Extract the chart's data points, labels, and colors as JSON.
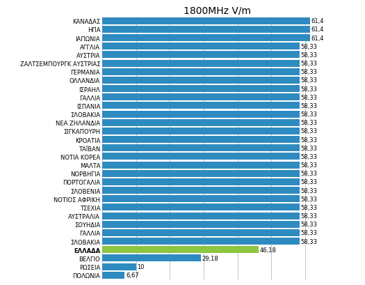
{
  "title": "1800MHz V/m",
  "categories": [
    "ΠΟΛΩΝΙΑ",
    "ΡΩΣΕΙΑ",
    "ΒΕΛΓΙΟ",
    "ΕΛΛΑΔΑ",
    "ΣΛΟΒΑΚΙΑ",
    "ΓΑΛΛΙΑ",
    "ΣΟΥΗΔΙΑ",
    "ΑΥΣΤΡΑΛΙΑ",
    "ΤΣΕΧΙΑ",
    "ΝΟΤΙΟΣ ΑΦΡΙΚΗ",
    "ΣΛΟΒΕΝΙΑ",
    "ΠΟΡΤΟΓΑΛΙΑ",
    "ΝΟΡΒΗΓΙΑ",
    "ΜΑΛΤΑ",
    "ΝΟΤΙΑ ΚΟΡΕΑ",
    "ΤΑΪΒΑΝ",
    "ΚΡΟΑΤΙΑ",
    "ΣΙΓΚΑΠΟΥΡΗ",
    "ΝΕΑ ΖΗΛΑΝΔΙΑ",
    "ΣΛΟΒΑΚΙΑ",
    "ΙΣΠΑΝΙΑ",
    "ΓΑΛΛΙΑ",
    "ΙΣΡΑΗΛ",
    "ΟΛΛΑΝΔΙΑ",
    "ΓΕΡΜΑΝΙΑ",
    "ΖΑΛΤΣΕΜΠΟΥΡΓΚ ΑΥΣΤΡΙΑΣ",
    "ΑΥΣΤΡΙΑ",
    "ΑΓΓΛΙΑ",
    "ΙΑΠΩΝΙΑ",
    "ΗΠΑ",
    "ΚΑΝΑΔΑΣ"
  ],
  "values": [
    6.67,
    10,
    29.18,
    46.18,
    58.33,
    58.33,
    58.33,
    58.33,
    58.33,
    58.33,
    58.33,
    58.33,
    58.33,
    58.33,
    58.33,
    58.33,
    58.33,
    58.33,
    58.33,
    58.33,
    58.33,
    58.33,
    58.33,
    58.33,
    58.33,
    58.33,
    58.33,
    58.33,
    61.4,
    61.4,
    61.4
  ],
  "bar_colors": [
    "#2e8bc0",
    "#2e8bc0",
    "#2e8bc0",
    "#8dc63f",
    "#2e8bc0",
    "#2e8bc0",
    "#2e8bc0",
    "#2e8bc0",
    "#2e8bc0",
    "#2e8bc0",
    "#2e8bc0",
    "#2e8bc0",
    "#2e8bc0",
    "#2e8bc0",
    "#2e8bc0",
    "#2e8bc0",
    "#2e8bc0",
    "#2e8bc0",
    "#2e8bc0",
    "#2e8bc0",
    "#2e8bc0",
    "#2e8bc0",
    "#2e8bc0",
    "#2e8bc0",
    "#2e8bc0",
    "#2e8bc0",
    "#2e8bc0",
    "#2e8bc0",
    "#2e8bc0",
    "#2e8bc0",
    "#2e8bc0"
  ],
  "label_bold_idx": 3,
  "value_labels": [
    "6,67",
    "10",
    "29,18",
    "46,18",
    "58,33",
    "58,33",
    "58,33",
    "58,33",
    "58,33",
    "58,33",
    "58,33",
    "58,33",
    "58,33",
    "58,33",
    "58,33",
    "58,33",
    "58,33",
    "58,33",
    "58,33",
    "58,33",
    "58,33",
    "58,33",
    "58,33",
    "58,33",
    "58,33",
    "58,33",
    "58,33",
    "58,33",
    "61,4",
    "61,4",
    "61,4"
  ],
  "xlim": [
    0,
    68
  ],
  "bg_color": "#ffffff",
  "grid_color": "#b0c8d8",
  "title_fontsize": 10,
  "label_fontsize": 6.0,
  "value_fontsize": 6.0
}
